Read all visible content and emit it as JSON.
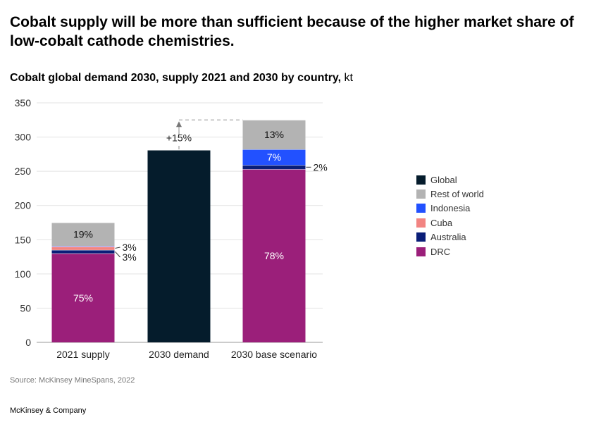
{
  "headline": "Cobalt supply will be more than sufficient because of the higher market share of low-cobalt cathode chemistries.",
  "subtitle_bold": "Cobalt global demand 2030, supply 2021 and 2030 by country,",
  "subtitle_unit": " kt",
  "source": "Source: McKinsey MineSpans, 2022",
  "brand": "McKinsey & Company",
  "colors": {
    "Global": "#051c2c",
    "Rest of world": "#b3b3b3",
    "Indonesia": "#2251ff",
    "Cuba": "#f28482",
    "Australia": "#0a1e78",
    "DRC": "#9b1f7a"
  },
  "legend": [
    "Global",
    "Rest of world",
    "Indonesia",
    "Cuba",
    "Australia",
    "DRC"
  ],
  "chart_data": {
    "type": "bar",
    "stacked": true,
    "categories": [
      "2021 supply",
      "2030 demand",
      "2030 base scenario"
    ],
    "ylim": [
      0,
      350
    ],
    "yticks": [
      0,
      50,
      100,
      150,
      200,
      250,
      300,
      350
    ],
    "grid": true,
    "legend_position": "right",
    "series": [
      {
        "name": "DRC",
        "values": [
          130,
          0,
          253
        ],
        "labels": [
          "75%",
          "",
          "78%"
        ]
      },
      {
        "name": "Australia",
        "values": [
          5,
          0,
          6
        ],
        "labels": [
          "3%",
          "",
          "2%"
        ]
      },
      {
        "name": "Cuba",
        "values": [
          5,
          0,
          0
        ],
        "labels": [
          "3%",
          "",
          ""
        ]
      },
      {
        "name": "Indonesia",
        "values": [
          1,
          0,
          23
        ],
        "labels": [
          "",
          "",
          "7%"
        ]
      },
      {
        "name": "Rest of world",
        "values": [
          34,
          0,
          43
        ],
        "labels": [
          "19%",
          "",
          "13%"
        ]
      },
      {
        "name": "Global",
        "values": [
          0,
          281,
          0
        ],
        "labels": [
          "",
          "",
          ""
        ]
      }
    ],
    "annotation": {
      "text": "+15%",
      "from_value": 281,
      "to_value": 325
    }
  }
}
